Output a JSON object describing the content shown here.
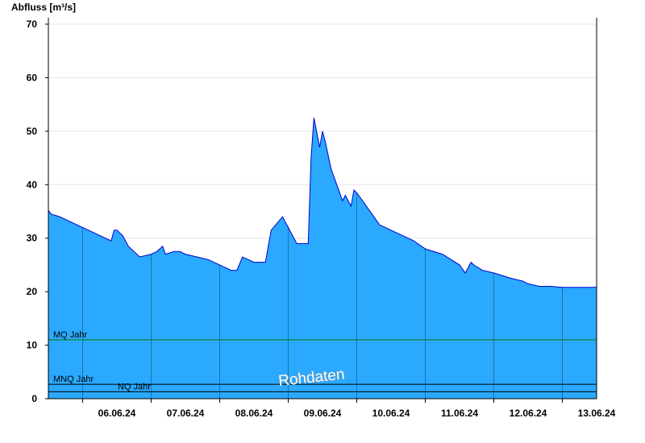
{
  "chart_data": {
    "type": "area",
    "ylabel": "Abfluss [m³/s]",
    "ylim": [
      0,
      72
    ],
    "yticks": [
      0,
      10,
      20,
      30,
      40,
      50,
      60,
      70
    ],
    "xlim": [
      "2024-06-05T12:00",
      "2024-06-13T12:00"
    ],
    "x_tick_labels": [
      {
        "date": "2024-06-06",
        "label": "06.06.24"
      },
      {
        "date": "2024-06-07",
        "label": "07.06.24"
      },
      {
        "date": "2024-06-08",
        "label": "08.06.24"
      },
      {
        "date": "2024-06-09",
        "label": "09.06.24"
      },
      {
        "date": "2024-06-10",
        "label": "10.06.24"
      },
      {
        "date": "2024-06-11",
        "label": "11.06.24"
      },
      {
        "date": "2024-06-12",
        "label": "12.06.24"
      },
      {
        "date": "2024-06-13",
        "label": "13.06.24"
      }
    ],
    "grid": "horizontal",
    "series": [
      {
        "x": [
          "2024-06-05T12:00",
          "2024-06-05T13:00",
          "2024-06-05T16:00",
          "2024-06-05T20:00",
          "2024-06-06T00:00",
          "2024-06-06T04:00",
          "2024-06-06T08:00",
          "2024-06-06T10:00",
          "2024-06-06T11:00",
          "2024-06-06T12:00",
          "2024-06-06T14:00",
          "2024-06-06T16:00",
          "2024-06-06T20:00",
          "2024-06-07T00:00",
          "2024-06-07T02:00",
          "2024-06-07T04:00",
          "2024-06-07T05:00",
          "2024-06-07T08:00",
          "2024-06-07T10:00",
          "2024-06-07T12:00",
          "2024-06-07T16:00",
          "2024-06-07T20:00",
          "2024-06-08T00:00",
          "2024-06-08T04:00",
          "2024-06-08T06:00",
          "2024-06-08T08:00",
          "2024-06-08T10:00",
          "2024-06-08T12:00",
          "2024-06-08T16:00",
          "2024-06-08T18:00",
          "2024-06-08T22:00",
          "2024-06-09T00:00",
          "2024-06-09T03:00",
          "2024-06-09T05:00",
          "2024-06-09T07:00",
          "2024-06-09T08:00",
          "2024-06-09T09:00",
          "2024-06-09T11:00",
          "2024-06-09T12:00",
          "2024-06-09T13:00",
          "2024-06-09T15:00",
          "2024-06-09T17:00",
          "2024-06-09T18:00",
          "2024-06-09T19:00",
          "2024-06-09T20:00",
          "2024-06-09T21:00",
          "2024-06-09T22:00",
          "2024-06-09T23:00",
          "2024-06-10T00:00",
          "2024-06-10T02:00",
          "2024-06-10T04:00",
          "2024-06-10T06:00",
          "2024-06-10T08:00",
          "2024-06-10T10:00",
          "2024-06-10T12:00",
          "2024-06-10T16:00",
          "2024-06-10T20:00",
          "2024-06-11T00:00",
          "2024-06-11T06:00",
          "2024-06-11T12:00",
          "2024-06-11T14:00",
          "2024-06-11T16:00",
          "2024-06-11T17:00",
          "2024-06-11T20:00",
          "2024-06-12T00:00",
          "2024-06-12T06:00",
          "2024-06-12T10:00",
          "2024-06-12T12:00",
          "2024-06-12T16:00",
          "2024-06-12T20:00",
          "2024-06-13T00:00",
          "2024-06-13T04:00",
          "2024-06-13T06:00",
          "2024-06-13T10:00",
          "2024-06-13T12:00"
        ],
        "y": [
          35.2,
          34.5,
          34.0,
          33.0,
          32.0,
          31.0,
          30.0,
          29.5,
          31.5,
          31.5,
          30.5,
          28.5,
          26.5,
          27.0,
          27.5,
          28.5,
          27.0,
          27.5,
          27.5,
          27.0,
          26.5,
          26.0,
          25.0,
          24.0,
          24.0,
          26.5,
          26.0,
          25.5,
          25.5,
          31.5,
          34.0,
          32.0,
          29.0,
          29.0,
          29.0,
          45.0,
          52.5,
          47.0,
          50.0,
          48.0,
          43.0,
          40.0,
          38.5,
          37.0,
          38.0,
          37.0,
          36.0,
          39.0,
          38.5,
          37.0,
          35.5,
          34.0,
          32.5,
          32.0,
          31.5,
          30.5,
          29.5,
          28.0,
          27.0,
          25.0,
          23.5,
          25.5,
          25.0,
          24.0,
          23.5,
          22.5,
          22.0,
          21.5,
          21.0,
          21.0,
          20.8,
          20.8,
          20.8,
          20.8,
          20.8
        ]
      }
    ],
    "reference_lines": [
      {
        "label": "MQ Jahr",
        "value": 11.0,
        "color": "#008000"
      },
      {
        "label": "MNQ Jahr",
        "value": 2.7,
        "color": "#000000"
      },
      {
        "label": "NQ Jahr",
        "value": 1.3,
        "color": "#000000"
      }
    ],
    "watermark": "Rohdaten",
    "colors": {
      "fill": "#2aa9ff",
      "line": "#0000cc",
      "grid": "#e6e6e6",
      "axis": "#000000"
    }
  }
}
